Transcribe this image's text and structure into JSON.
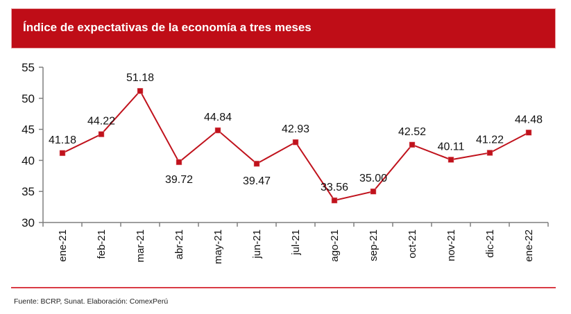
{
  "header": {
    "title": "Índice de expectativas de la economía a tres meses"
  },
  "footer": {
    "source": "Fuente: BCRP, Sunat. Elaboración: ComexPerú"
  },
  "colors": {
    "brand": "#bf0d17",
    "line": "#c0121c",
    "axis": "#7f7f7f",
    "footer_line": "#d93a44"
  },
  "chart_data": {
    "type": "line",
    "title": "Índice de expectativas de la economía a tres meses",
    "xlabel": "",
    "ylabel": "",
    "categories": [
      "ene-21",
      "feb-21",
      "mar-21",
      "abr-21",
      "may-21",
      "jun-21",
      "jul-21",
      "ago-21",
      "sep-21",
      "oct-21",
      "nov-21",
      "dic-21",
      "ene-22"
    ],
    "series": [
      {
        "name": "Índice de expectativas de la economía a tres meses",
        "values": [
          41.18,
          44.22,
          51.18,
          39.72,
          44.84,
          39.47,
          42.93,
          33.56,
          35.0,
          42.52,
          40.11,
          41.22,
          44.48
        ],
        "labels": [
          "41.18",
          "44.22",
          "51.18",
          "39.72",
          "44.84",
          "39.47",
          "42.93",
          "33.56",
          "35.00",
          "42.52",
          "40.11",
          "41.22",
          "44.48"
        ],
        "label_position": [
          "above",
          "above",
          "above",
          "below",
          "above",
          "below",
          "above",
          "above",
          "above",
          "above",
          "above",
          "above",
          "above"
        ]
      }
    ],
    "ylim": [
      30,
      55
    ],
    "yticks": [
      30,
      35,
      40,
      45,
      50,
      55
    ],
    "ytick_labels": [
      "30",
      "35",
      "40",
      "45",
      "50",
      "55"
    ],
    "grid": false,
    "legend": "none",
    "marker": "square"
  }
}
